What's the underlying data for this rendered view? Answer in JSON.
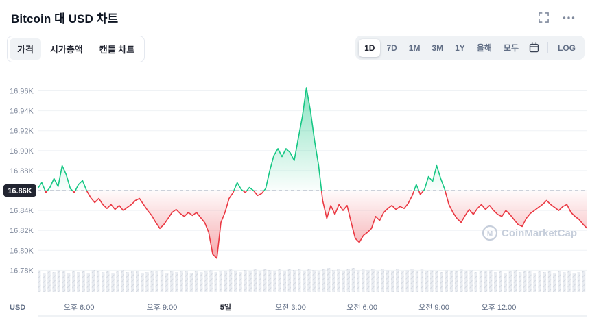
{
  "header": {
    "title": "Bitcoin 대 USD 차트",
    "icons": {
      "fullscreen": "fullscreen-icon",
      "more": "more-options-icon"
    }
  },
  "toolbar": {
    "view_tabs": [
      {
        "label": "가격",
        "active": true
      },
      {
        "label": "시가총액",
        "active": false
      },
      {
        "label": "캔들 차트",
        "active": false
      }
    ],
    "ranges": [
      {
        "label": "1D",
        "active": true
      },
      {
        "label": "7D",
        "active": false
      },
      {
        "label": "1M",
        "active": false
      },
      {
        "label": "3M",
        "active": false
      },
      {
        "label": "1Y",
        "active": false
      },
      {
        "label": "올해",
        "active": false
      },
      {
        "label": "모두",
        "active": false
      }
    ],
    "calendar_icon": "calendar-icon",
    "log_label": "LOG"
  },
  "chart_data": {
    "type": "line",
    "title": "Bitcoin 대 USD 차트",
    "unit_label": "USD",
    "watermark": "CoinMarketCap",
    "baseline_value": 16.86,
    "baseline_label": "16.86K",
    "ylim": [
      16.775,
      16.975
    ],
    "grid": "horizontal",
    "legend_position": "none",
    "y_ticks": [
      "16.96K",
      "16.94K",
      "16.92K",
      "16.90K",
      "16.88K",
      "16.86K",
      "16.84K",
      "16.82K",
      "16.80K",
      "16.78K"
    ],
    "y_tick_values": [
      16.96,
      16.94,
      16.92,
      16.9,
      16.88,
      16.86,
      16.84,
      16.82,
      16.8,
      16.78
    ],
    "x_labels": [
      {
        "label": "오후 6:00",
        "pos": 0.075
      },
      {
        "label": "오후 9:00",
        "pos": 0.226
      },
      {
        "label": "5일",
        "pos": 0.342
      },
      {
        "label": "오전 3:00",
        "pos": 0.46
      },
      {
        "label": "오전 6:00",
        "pos": 0.59
      },
      {
        "label": "오전 9:00",
        "pos": 0.721
      },
      {
        "label": "오후 12:00",
        "pos": 0.839
      }
    ],
    "x_bold_label": "5일",
    "prices_k": [
      16.862,
      16.868,
      16.858,
      16.863,
      16.872,
      16.864,
      16.885,
      16.876,
      16.862,
      16.858,
      16.866,
      16.87,
      16.86,
      16.853,
      16.848,
      16.852,
      16.846,
      16.842,
      16.846,
      16.841,
      16.845,
      16.84,
      16.843,
      16.846,
      16.85,
      16.852,
      16.846,
      16.84,
      16.835,
      16.828,
      16.822,
      16.826,
      16.832,
      16.838,
      16.841,
      16.837,
      16.834,
      16.838,
      16.835,
      16.838,
      16.833,
      16.828,
      16.818,
      16.796,
      16.792,
      16.828,
      16.838,
      16.852,
      16.858,
      16.868,
      16.861,
      16.858,
      16.863,
      16.86,
      16.855,
      16.857,
      16.862,
      16.88,
      16.895,
      16.902,
      16.894,
      16.902,
      16.898,
      16.89,
      16.912,
      16.934,
      16.963,
      16.94,
      16.91,
      16.885,
      16.85,
      16.832,
      16.845,
      16.836,
      16.846,
      16.84,
      16.845,
      16.828,
      16.812,
      16.808,
      16.815,
      16.818,
      16.822,
      16.834,
      16.83,
      16.838,
      16.842,
      16.845,
      16.841,
      16.844,
      16.842,
      16.847,
      16.855,
      16.866,
      16.856,
      16.861,
      16.874,
      16.869,
      16.885,
      16.872,
      16.861,
      16.846,
      16.838,
      16.832,
      16.828,
      16.835,
      16.841,
      16.836,
      16.842,
      16.846,
      16.841,
      16.845,
      16.84,
      16.836,
      16.834,
      16.84,
      16.836,
      16.831,
      16.826,
      16.824,
      16.832,
      16.837,
      16.84,
      16.843,
      16.846,
      16.85,
      16.846,
      16.843,
      16.84,
      16.844,
      16.846,
      16.838,
      16.834,
      16.831,
      16.826,
      16.822
    ],
    "volume_rel": [
      30,
      28,
      31,
      29,
      32,
      30,
      27,
      31,
      29,
      30,
      28,
      32,
      30,
      29,
      31,
      28,
      30,
      32,
      29,
      31,
      30,
      28,
      29,
      31,
      30,
      32,
      28,
      30,
      29,
      31,
      30,
      28,
      31,
      29,
      30,
      32,
      29,
      31,
      30,
      33,
      31,
      29,
      32,
      30,
      33,
      31,
      34,
      32,
      30,
      33,
      31,
      34,
      32,
      33,
      31,
      34,
      32,
      30,
      33,
      35,
      32,
      34,
      31,
      33,
      35,
      32,
      34,
      32,
      33,
      31,
      34,
      32,
      30,
      33,
      31,
      32,
      34,
      31,
      33,
      30,
      32,
      31,
      29,
      32,
      30,
      31,
      33,
      30,
      32,
      29,
      31,
      30,
      32,
      29,
      31,
      28,
      30,
      32,
      29,
      31,
      30,
      28,
      31,
      29,
      30,
      28,
      31,
      29,
      30,
      28,
      29,
      30
    ],
    "colors": {
      "up": "#16c784",
      "down": "#ea3943",
      "baseline_badge": "#222531",
      "baseline_dash": "#9aa3b5",
      "grid": "#eff2f5",
      "axis_text": "#808a9d",
      "x_text": "#616e85",
      "volume": "#e9ecf1",
      "volume_stripe": "#d3d8e0",
      "watermark": "#c6cedb",
      "scrollbar": "#eff2f5"
    }
  }
}
